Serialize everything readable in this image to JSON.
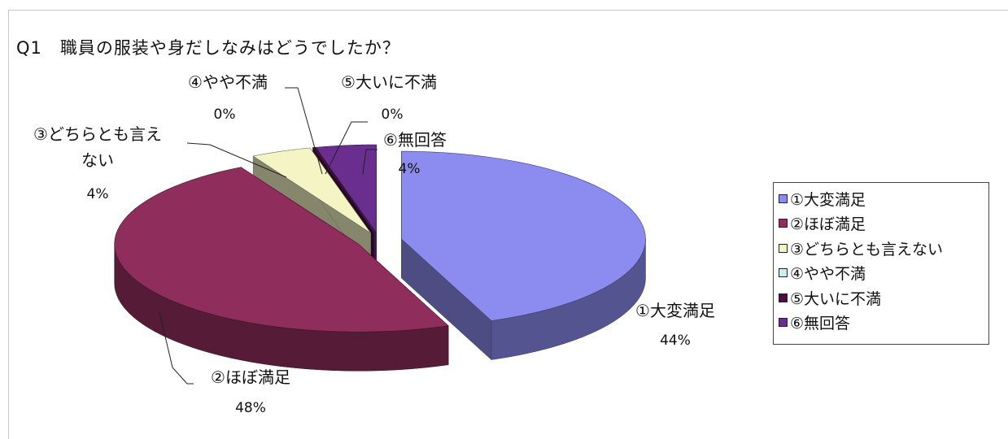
{
  "chart_data": {
    "type": "pie",
    "title": "Q1　職員の服装や身だしなみはどうでしたか？",
    "categories": [
      "①大変満足",
      "②ほぼ満足",
      "③どちらとも言えない",
      "④やや不満",
      "⑤大いに不満",
      "⑥無回答"
    ],
    "values": [
      44,
      48,
      4,
      0,
      0,
      4
    ],
    "value_labels": [
      "44%",
      "48%",
      "4%",
      "0%",
      "0%",
      "4%"
    ],
    "data_label_names": [
      "①大変満足",
      "②ほぼ満足",
      "③どちらとも言え",
      "④やや不満",
      "⑤大いに不満",
      "⑥無回答"
    ],
    "data_label_names_line2": [
      "",
      "",
      "ない",
      "",
      "",
      ""
    ],
    "legend_labels": [
      "①大変満足",
      "②ほぼ満足",
      "③どちらとも言えない",
      "④やや不満",
      "⑤大いに不満",
      "⑥無回答"
    ],
    "legend_position": "right",
    "exploded": true,
    "three_d": true,
    "colors": [
      "#8c8cf0",
      "#8f2d5c",
      "#f4f4c4",
      "#c8f0f4",
      "#4a0d47",
      "#6a2e8f"
    ]
  }
}
